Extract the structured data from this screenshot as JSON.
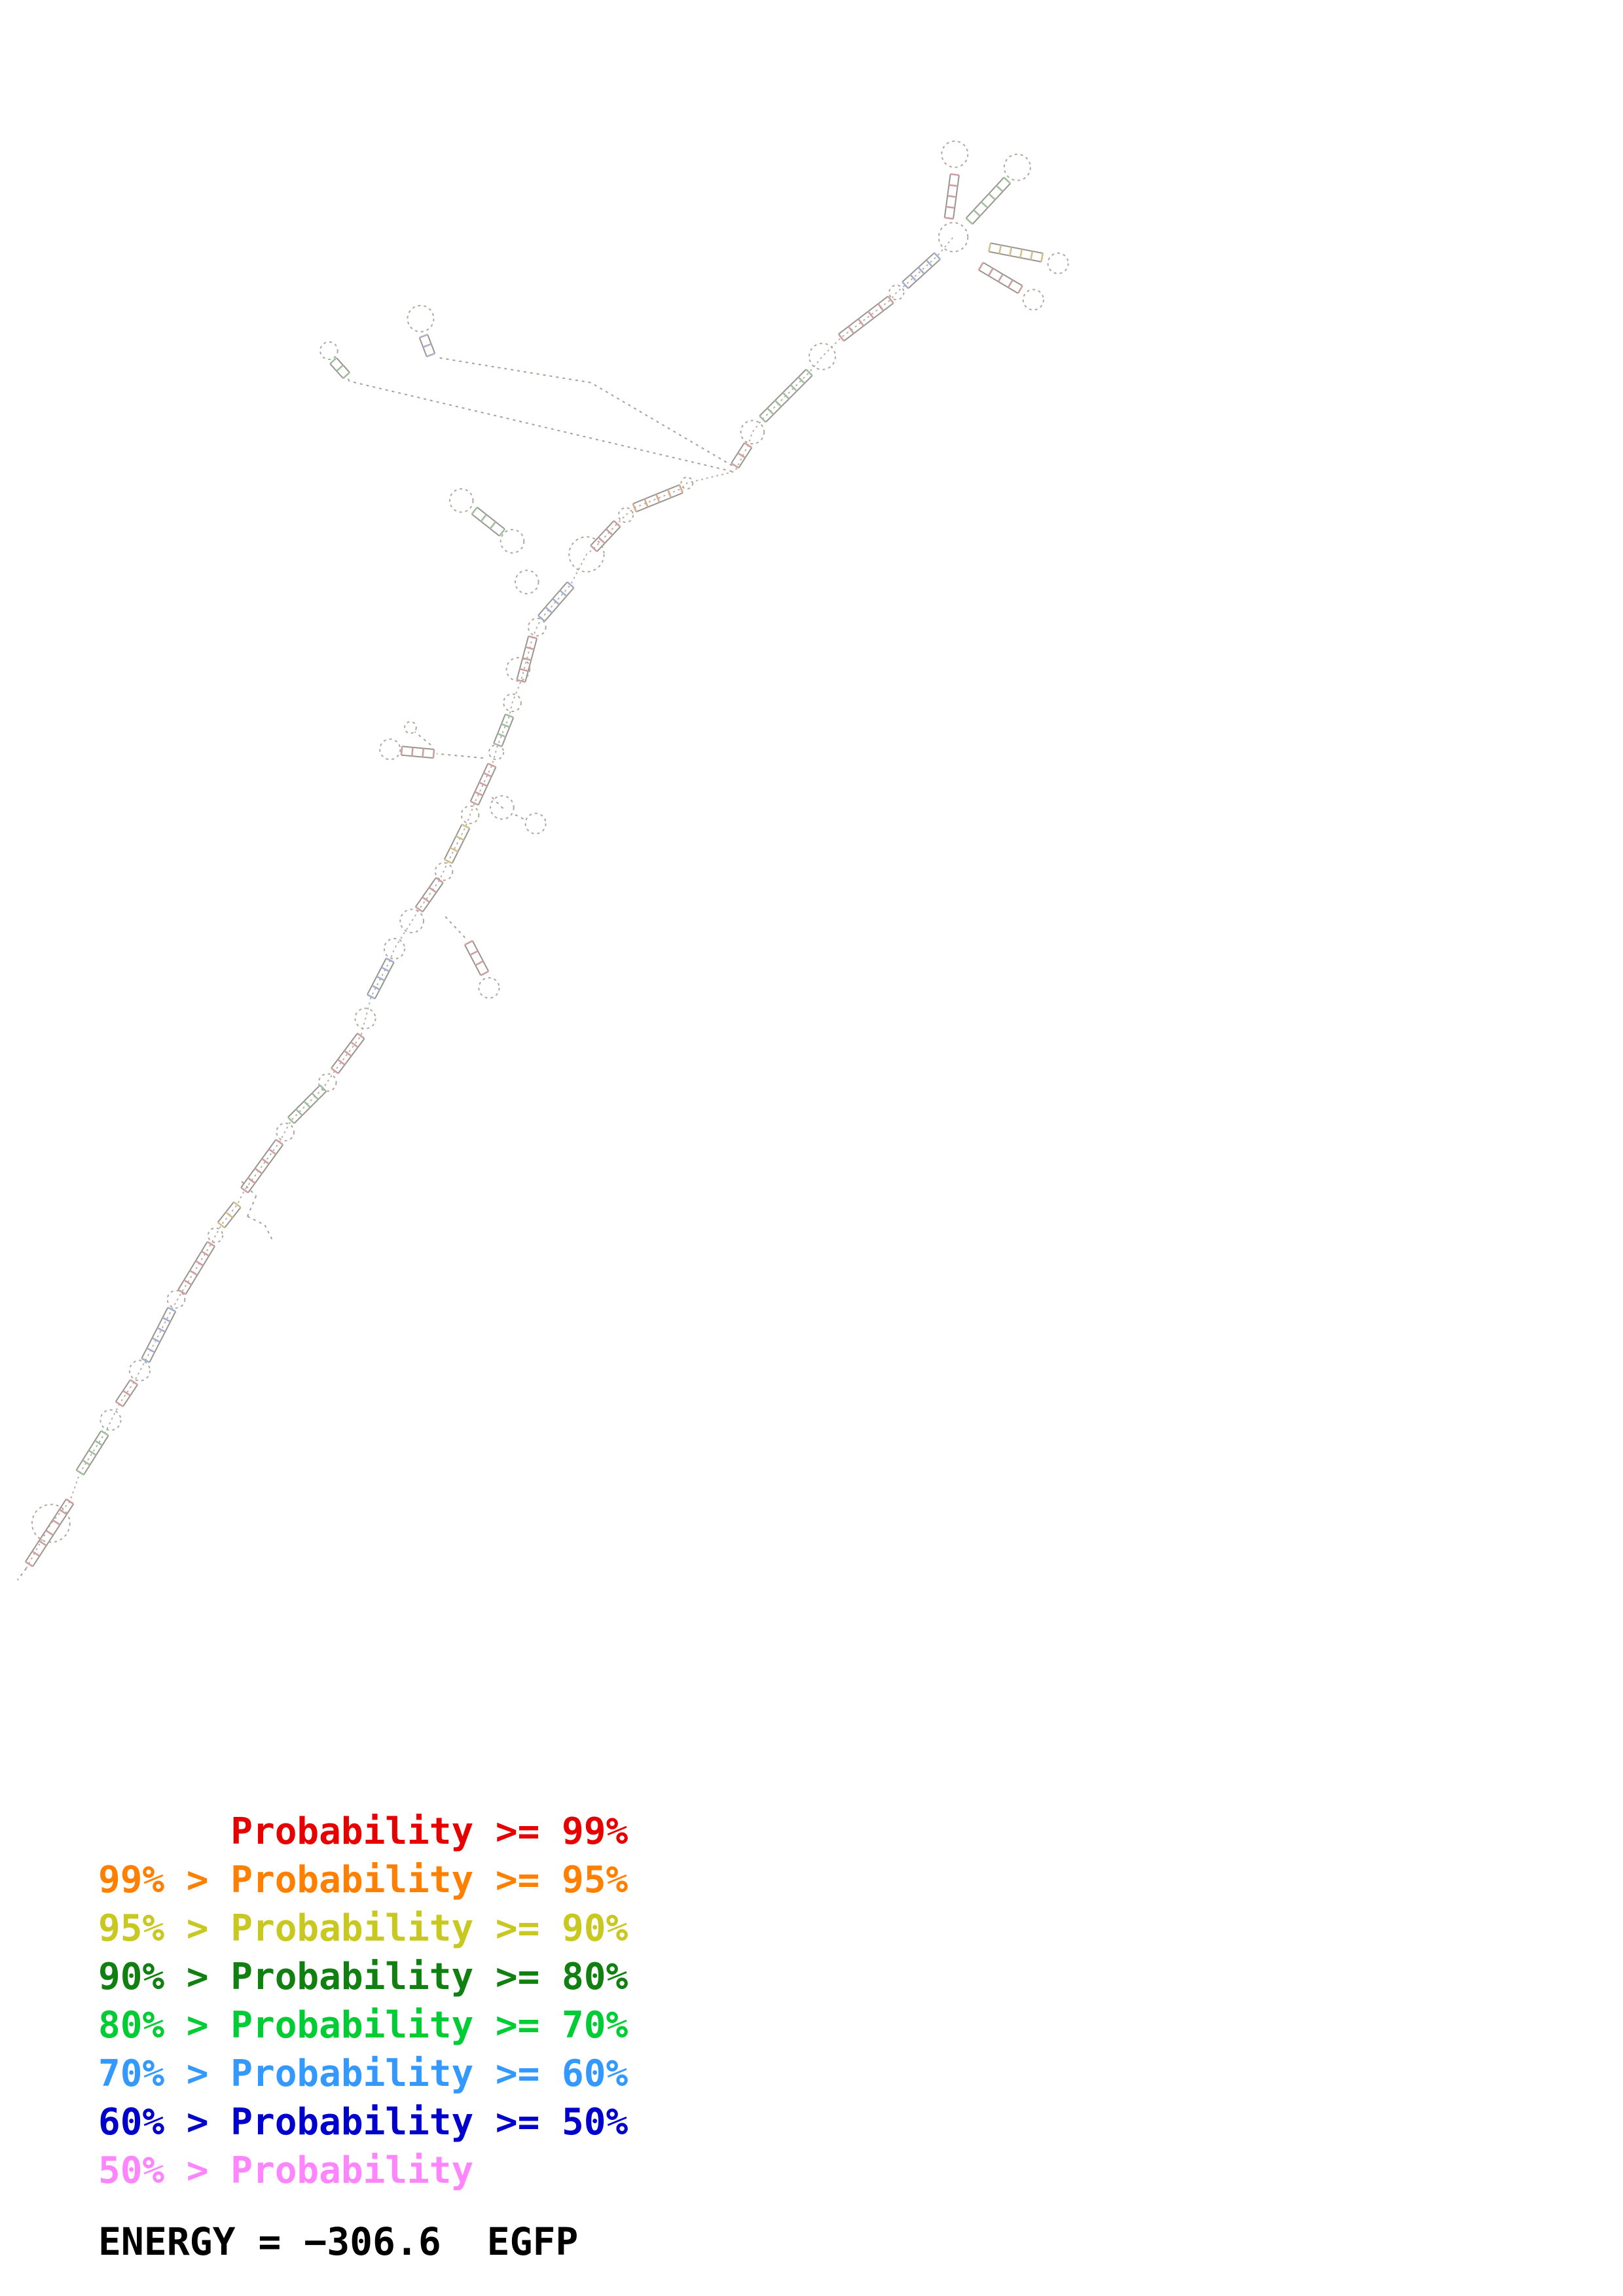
{
  "page": {
    "background": "#ffffff"
  },
  "legend": {
    "lines": [
      {
        "text": "      Probability >= 99%",
        "color": "#e60000"
      },
      {
        "text": "99% > Probability >= 95%",
        "color": "#ff8000"
      },
      {
        "text": "95% > Probability >= 90%",
        "color": "#c8c820"
      },
      {
        "text": "90% > Probability >= 80%",
        "color": "#108010"
      },
      {
        "text": "80% > Probability >= 70%",
        "color": "#00cc33"
      },
      {
        "text": "70% > Probability >= 60%",
        "color": "#3399ff"
      },
      {
        "text": "60% > Probability >= 50%",
        "color": "#0000cd"
      },
      {
        "text": "50% > Probability",
        "color": "#ff85ff"
      }
    ]
  },
  "energy": {
    "text": "ENERGY = −306.6  EGFP",
    "value": -306.6,
    "molecule": "EGFP"
  },
  "structure": {
    "scale": 2.223,
    "backbone_color": "#b8b0a8",
    "strand_color": "#9a948e",
    "loop_color": "#b0a8a0",
    "ssline_color": "#a8a09a",
    "palette": [
      "#cf9f9f",
      "#9fbf9f",
      "#9fafcf",
      "#cfc18a",
      "#dca98a",
      "#b9a9c9"
    ],
    "backbone": [
      [
        18,
        1078
      ],
      [
        35,
        1047
      ],
      [
        48,
        1032
      ],
      [
        55,
        1012
      ],
      [
        72,
        985
      ],
      [
        82,
        965
      ],
      [
        92,
        950
      ],
      [
        100,
        935
      ],
      [
        118,
        900
      ],
      [
        125,
        888
      ],
      [
        145,
        855
      ],
      [
        152,
        842
      ],
      [
        163,
        828
      ],
      [
        168,
        818
      ],
      [
        192,
        785
      ],
      [
        200,
        770
      ],
      [
        222,
        748
      ],
      [
        230,
        736
      ],
      [
        248,
        712
      ],
      [
        255,
        685
      ],
      [
        268,
        660
      ],
      [
        271,
        652
      ],
      [
        283,
        633
      ],
      [
        288,
        625
      ],
      [
        302,
        605
      ],
      [
        308,
        592
      ],
      [
        320,
        568
      ],
      [
        326,
        552
      ],
      [
        338,
        526
      ],
      [
        342,
        512
      ],
      [
        350,
        492
      ],
      [
        352,
        483
      ],
      [
        358,
        468
      ],
      [
        366,
        438
      ],
      [
        369,
        431
      ],
      [
        372,
        425
      ],
      [
        392,
        402
      ],
      [
        403,
        381
      ],
      [
        408,
        377
      ],
      [
        424,
        360
      ],
      [
        430,
        354
      ],
      [
        436,
        349
      ],
      [
        468,
        336
      ],
      [
        472,
        332
      ],
      [
        505,
        324
      ],
      [
        514,
        306
      ],
      [
        517,
        297
      ],
      [
        524,
        288
      ],
      [
        556,
        256
      ],
      [
        565,
        245
      ],
      [
        578,
        232
      ],
      [
        612,
        206
      ],
      [
        616,
        201
      ],
      [
        622,
        196
      ],
      [
        644,
        176
      ],
      [
        655,
        163
      ]
    ],
    "helices": [
      [
        20,
        1075,
        48,
        1032,
        0
      ],
      [
        55,
        1012,
        72,
        985,
        1
      ],
      [
        82,
        965,
        92,
        950,
        0
      ],
      [
        100,
        935,
        118,
        900,
        2
      ],
      [
        125,
        888,
        145,
        855,
        0
      ],
      [
        152,
        842,
        163,
        828,
        3
      ],
      [
        168,
        818,
        192,
        785,
        0
      ],
      [
        200,
        770,
        222,
        748,
        1
      ],
      [
        230,
        736,
        248,
        712,
        0
      ],
      [
        255,
        685,
        268,
        660,
        2
      ],
      [
        288,
        625,
        302,
        605,
        0
      ],
      [
        308,
        592,
        320,
        568,
        3
      ],
      [
        326,
        552,
        338,
        526,
        0
      ],
      [
        342,
        512,
        350,
        492,
        1
      ],
      [
        358,
        468,
        366,
        438,
        0
      ],
      [
        372,
        425,
        392,
        402,
        2
      ],
      [
        408,
        377,
        424,
        360,
        0
      ],
      [
        436,
        349,
        468,
        336,
        4
      ],
      [
        505,
        320,
        514,
        306,
        0
      ],
      [
        524,
        288,
        556,
        256,
        1
      ],
      [
        578,
        232,
        612,
        206,
        0
      ],
      [
        622,
        196,
        644,
        176,
        2
      ],
      [
        652,
        150,
        656,
        120,
        0
      ],
      [
        666,
        152,
        692,
        124,
        1
      ],
      [
        680,
        170,
        716,
        177,
        3
      ],
      [
        674,
        183,
        701,
        199,
        0
      ],
      [
        296,
        244,
        291,
        231,
        5
      ],
      [
        238,
        258,
        229,
        248,
        1
      ],
      [
        298,
        518,
        276,
        516,
        0
      ],
      [
        345,
        366,
        326,
        351,
        1
      ],
      [
        322,
        648,
        333,
        669,
        0
      ]
    ],
    "lines": [
      [
        503,
        324,
        240,
        262
      ],
      [
        503,
        320,
        406,
        263
      ],
      [
        406,
        263,
        302,
        246
      ],
      [
        240,
        262,
        238,
        258
      ],
      [
        332,
        521,
        300,
        518
      ],
      [
        296,
        512,
        285,
        503
      ],
      [
        306,
        630,
        320,
        645
      ],
      [
        338,
        548,
        346,
        556
      ],
      [
        354,
        560,
        362,
        564
      ],
      [
        166,
        812,
        176,
        822
      ],
      [
        176,
        822,
        170,
        836
      ],
      [
        170,
        836,
        182,
        842
      ],
      [
        182,
        842,
        187,
        852
      ],
      [
        18,
        1078,
        12,
        1086
      ]
    ],
    "loops": [
      [
        35,
        1047,
        13
      ],
      [
        76,
        976,
        7
      ],
      [
        96,
        942,
        7
      ],
      [
        121,
        893,
        6
      ],
      [
        148,
        849,
        5
      ],
      [
        196,
        778,
        6
      ],
      [
        225,
        744,
        6
      ],
      [
        251,
        700,
        7
      ],
      [
        271,
        652,
        7
      ],
      [
        283,
        633,
        8
      ],
      [
        305,
        599,
        6
      ],
      [
        323,
        560,
        6
      ],
      [
        341,
        517,
        5
      ],
      [
        352,
        483,
        6
      ],
      [
        356,
        460,
        8
      ],
      [
        369,
        431,
        6
      ],
      [
        403,
        381,
        12
      ],
      [
        430,
        354,
        5
      ],
      [
        472,
        332,
        4
      ],
      [
        517,
        297,
        8
      ],
      [
        565,
        245,
        9
      ],
      [
        616,
        201,
        5
      ],
      [
        655,
        163,
        10
      ],
      [
        656,
        106,
        9
      ],
      [
        699,
        115,
        9
      ],
      [
        727,
        181,
        7
      ],
      [
        710,
        206,
        7
      ],
      [
        289,
        219,
        9
      ],
      [
        226,
        241,
        6
      ],
      [
        317,
        344,
        8
      ],
      [
        352,
        372,
        8
      ],
      [
        362,
        400,
        8
      ],
      [
        268,
        515,
        7
      ],
      [
        282,
        500,
        4
      ],
      [
        345,
        555,
        8
      ],
      [
        368,
        566,
        7
      ],
      [
        336,
        679,
        7
      ]
    ]
  }
}
